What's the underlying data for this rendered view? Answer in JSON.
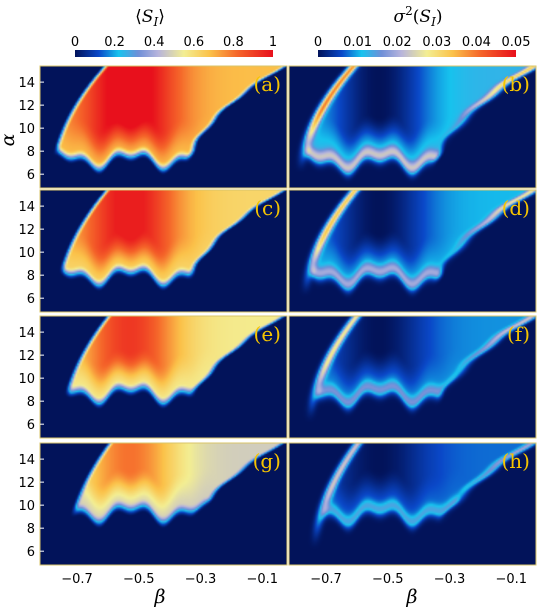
{
  "chart_data": {
    "type": "heatmap",
    "xlabel": "β",
    "ylabel": "α",
    "xlim": [
      -0.82,
      -0.02
    ],
    "ylim": [
      4.8,
      15.4
    ],
    "x_ticks": [
      "−0.7",
      "−0.5",
      "−0.3",
      "−0.1"
    ],
    "x_tick_values": [
      -0.7,
      -0.5,
      -0.3,
      -0.1
    ],
    "y_ticks": [
      "6",
      "8",
      "10",
      "12",
      "14"
    ],
    "y_tick_values": [
      6,
      8,
      10,
      12,
      14
    ],
    "grid": false,
    "colorbars": [
      {
        "title_core": "S",
        "title_sub": "I",
        "title_style": "angle",
        "range": [
          0,
          1
        ],
        "tick_values": [
          0,
          0.2,
          0.4,
          0.6,
          0.8,
          1
        ],
        "tick_labels": [
          "0",
          "0.2",
          "0.4",
          "0.6",
          "0.8",
          "1"
        ]
      },
      {
        "title_core": "σ",
        "title_sup": "2",
        "title_sub": "I",
        "title_style": "sigma",
        "range": [
          0,
          0.05
        ],
        "tick_values": [
          0,
          0.01,
          0.02,
          0.03,
          0.04,
          0.05
        ],
        "tick_labels": [
          "0",
          "0.01",
          "0.02",
          "0.03",
          "0.04",
          "0.05"
        ]
      }
    ],
    "colors": {
      "background": "#02135a",
      "panel_border": "#d9c46a",
      "label": "#f5c400"
    },
    "panels": [
      {
        "label": "(a)",
        "quantity": "mean",
        "row": 0,
        "col": 0,
        "shift": 0.0,
        "intensity": 1.0
      },
      {
        "label": "(b)",
        "quantity": "variance",
        "row": 0,
        "col": 1,
        "shift": 0.0,
        "intensity": 1.0
      },
      {
        "label": "(c)",
        "quantity": "mean",
        "row": 1,
        "col": 0,
        "shift": 0.015,
        "intensity": 0.97
      },
      {
        "label": "(d)",
        "quantity": "variance",
        "row": 1,
        "col": 1,
        "shift": 0.015,
        "intensity": 0.85
      },
      {
        "label": "(e)",
        "quantity": "mean",
        "row": 2,
        "col": 0,
        "shift": 0.03,
        "intensity": 0.93
      },
      {
        "label": "(f)",
        "quantity": "variance",
        "row": 2,
        "col": 1,
        "shift": 0.03,
        "intensity": 0.72
      },
      {
        "label": "(g)",
        "quantity": "mean",
        "row": 3,
        "col": 0,
        "shift": 0.045,
        "intensity": 0.85
      },
      {
        "label": "(h)",
        "quantity": "variance",
        "row": 3,
        "col": 1,
        "shift": 0.045,
        "intensity": 0.6
      }
    ]
  }
}
